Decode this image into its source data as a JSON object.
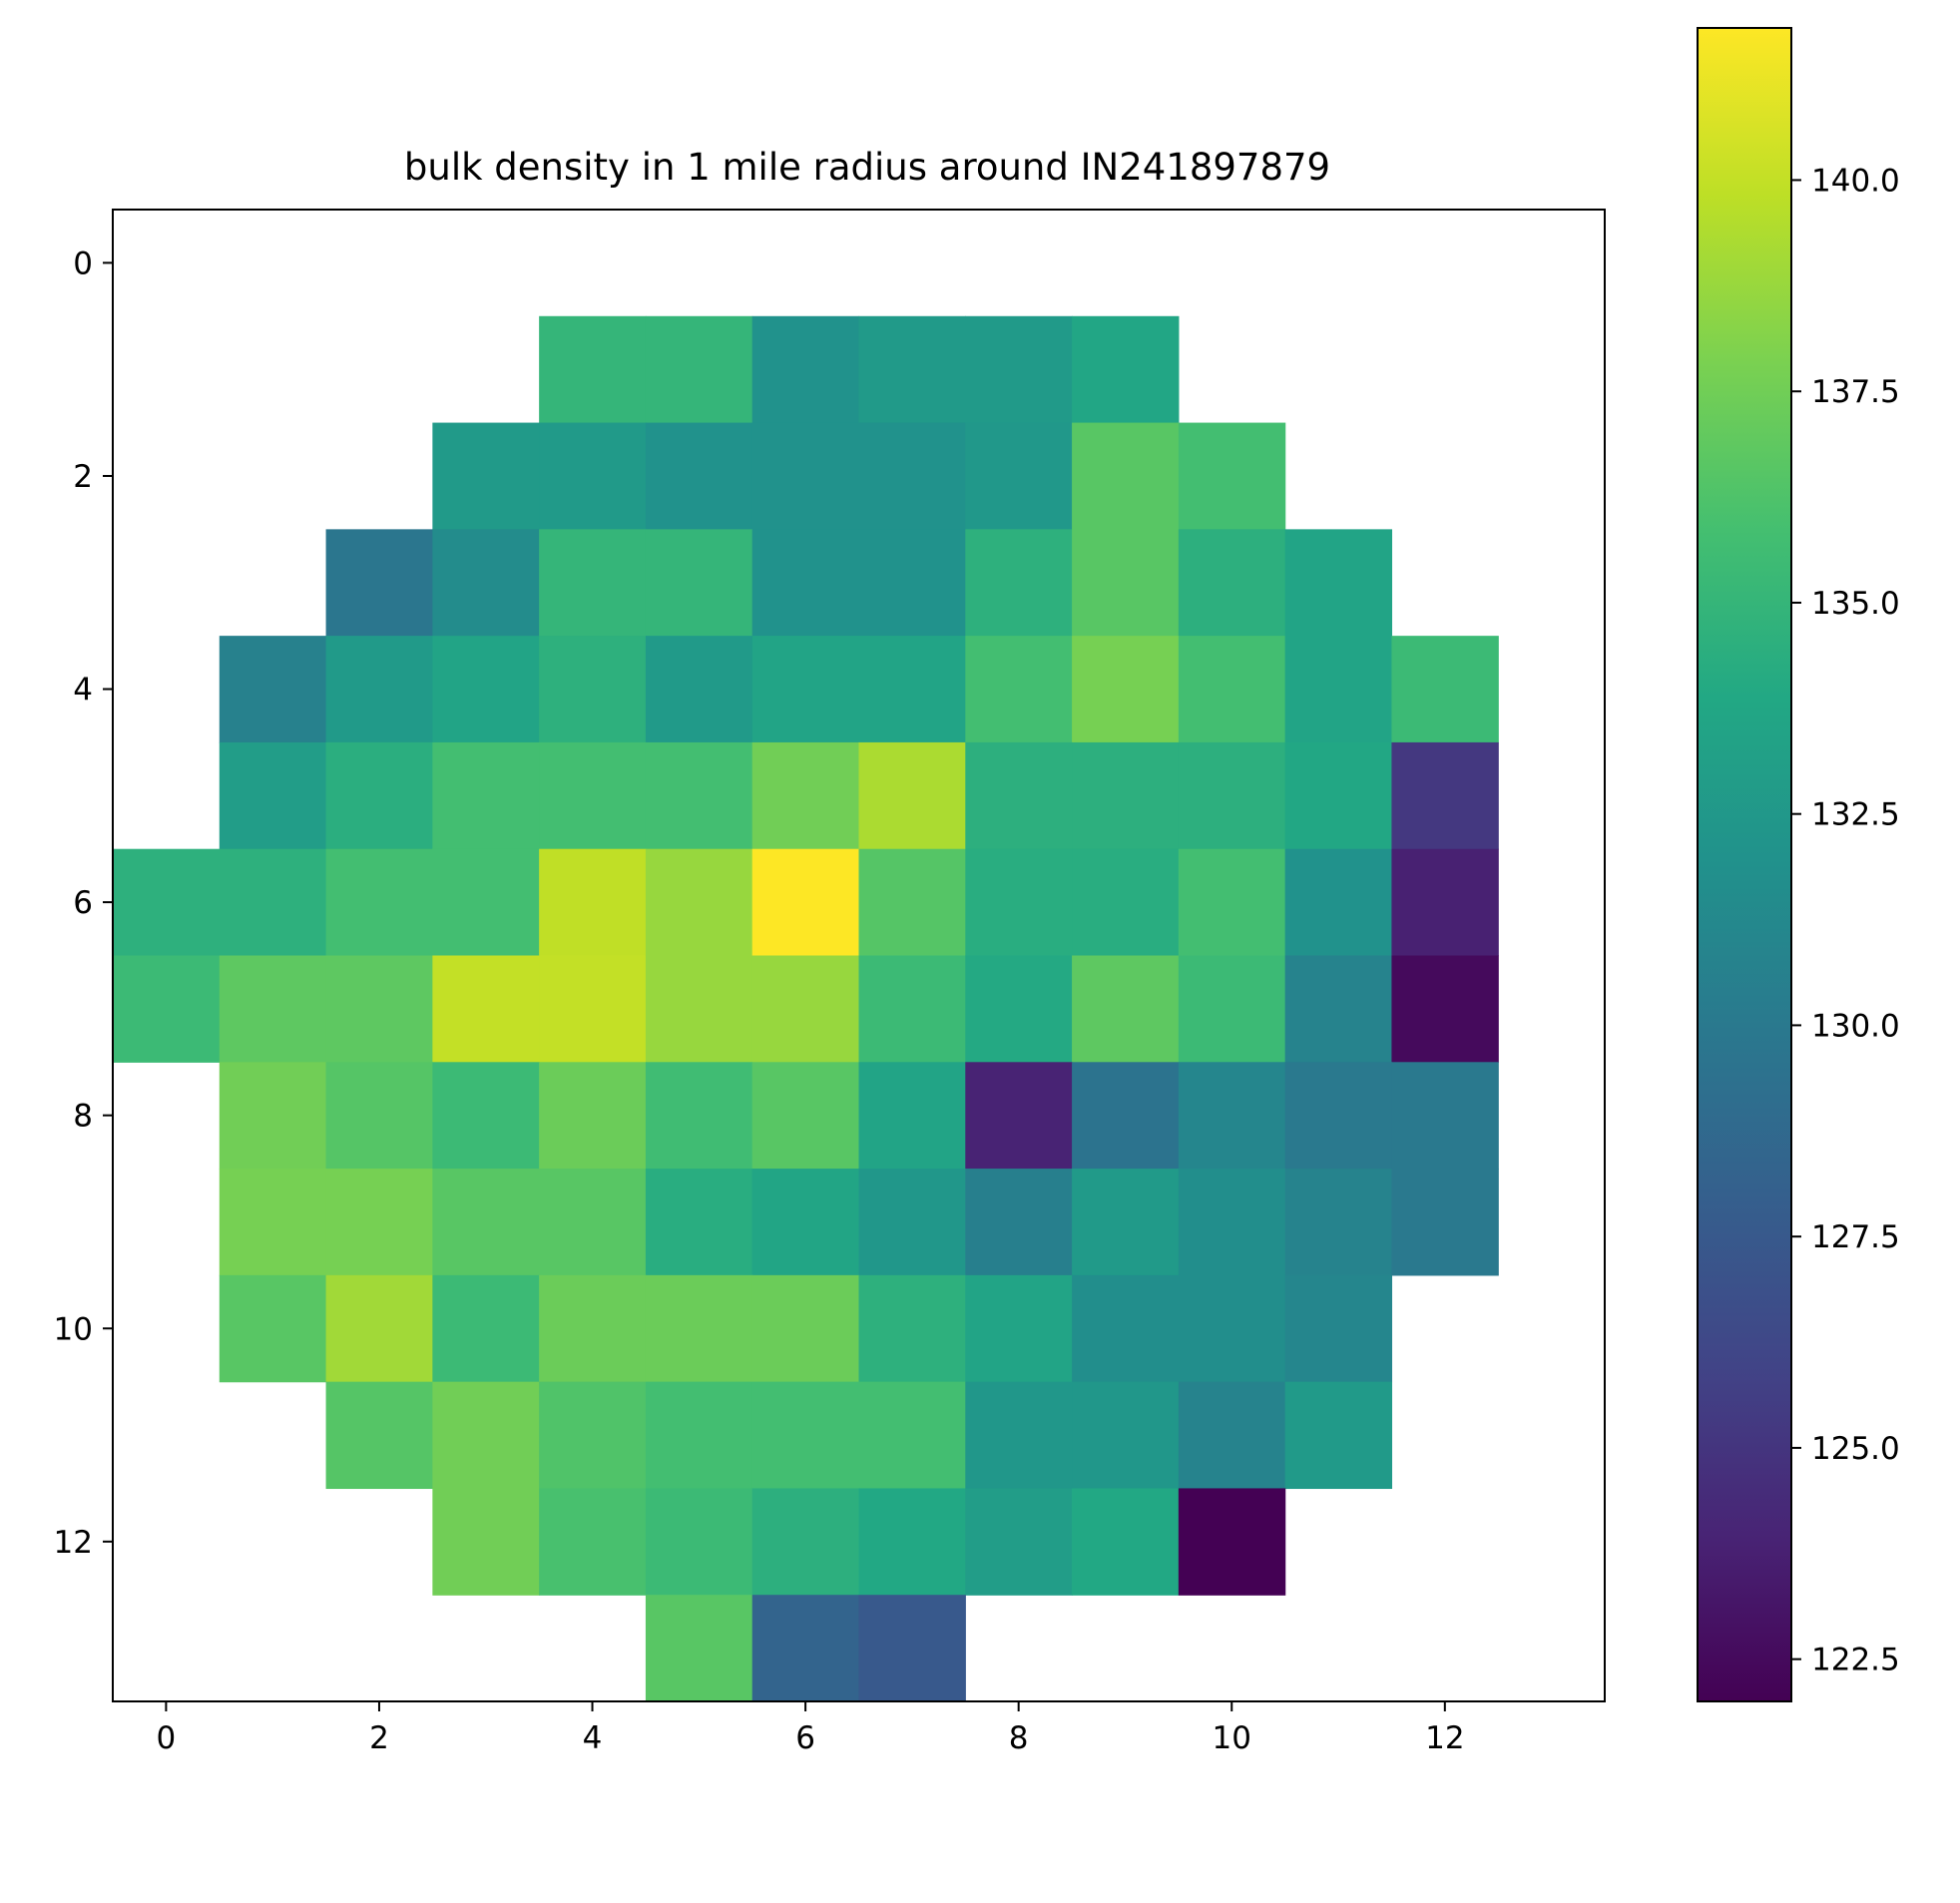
{
  "chart_data": {
    "type": "heatmap",
    "title": "bulk density in 1 mile radius around IN241897879",
    "xlabel": "",
    "ylabel": "",
    "colormap": "viridis",
    "x_ticks": [
      "0",
      "2",
      "4",
      "6",
      "8",
      "10",
      "12"
    ],
    "y_ticks": [
      "0",
      "2",
      "4",
      "6",
      "8",
      "10",
      "12"
    ],
    "x_range": [
      -0.5,
      13.5
    ],
    "y_range": [
      -0.5,
      13.5
    ],
    "y_inverted": true,
    "grid": false,
    "colorbar": {
      "vmin": 122.0,
      "vmax": 141.8,
      "ticks": [
        "122.5",
        "125.0",
        "127.5",
        "130.0",
        "132.5",
        "135.0",
        "137.5",
        "140.0"
      ]
    },
    "rows": 14,
    "cols": 14,
    "values": [
      [
        null,
        null,
        null,
        null,
        null,
        null,
        null,
        null,
        null,
        null,
        null,
        null,
        null,
        null
      ],
      [
        null,
        null,
        null,
        null,
        135.0,
        135.0,
        132.0,
        132.7,
        132.7,
        133.7,
        null,
        null,
        null,
        null
      ],
      [
        null,
        null,
        null,
        132.7,
        132.7,
        132.0,
        132.0,
        132.0,
        132.5,
        136.6,
        135.8,
        null,
        null,
        null
      ],
      [
        null,
        null,
        129.8,
        131.5,
        135.0,
        135.0,
        132.0,
        132.0,
        134.6,
        136.6,
        134.5,
        133.5,
        null,
        null
      ],
      [
        null,
        130.6,
        132.7,
        133.5,
        134.6,
        132.7,
        133.5,
        133.5,
        135.8,
        137.7,
        135.8,
        133.5,
        135.4,
        null
      ],
      [
        null,
        132.9,
        134.4,
        135.8,
        135.8,
        135.8,
        137.5,
        139.3,
        134.5,
        134.5,
        134.5,
        133.8,
        125.2,
        null
      ],
      [
        134.6,
        134.6,
        135.8,
        135.8,
        139.9,
        138.7,
        141.8,
        136.5,
        134.3,
        134.3,
        135.8,
        132.0,
        123.8,
        null
      ],
      [
        135.4,
        136.8,
        136.8,
        140.0,
        140.0,
        138.7,
        138.7,
        135.4,
        134.0,
        136.8,
        135.4,
        130.8,
        122.5,
        null
      ],
      [
        null,
        137.5,
        136.5,
        135.4,
        137.3,
        135.6,
        136.6,
        133.5,
        123.9,
        129.5,
        131.0,
        130.0,
        130.0,
        null
      ],
      [
        null,
        137.7,
        137.7,
        136.6,
        136.6,
        134.3,
        133.6,
        132.4,
        130.5,
        132.7,
        131.7,
        130.8,
        130.0,
        null
      ],
      [
        null,
        136.6,
        139.0,
        135.4,
        137.3,
        137.3,
        137.3,
        134.6,
        133.5,
        131.7,
        131.7,
        131.0,
        null,
        null
      ],
      [
        null,
        null,
        136.5,
        137.5,
        136.3,
        135.8,
        135.8,
        135.8,
        132.4,
        132.4,
        130.8,
        132.7,
        null,
        null
      ],
      [
        null,
        null,
        null,
        137.5,
        136.0,
        135.4,
        134.5,
        133.9,
        132.9,
        133.9,
        122.0,
        null,
        null,
        null
      ],
      [
        null,
        null,
        null,
        null,
        null,
        136.6,
        128.3,
        127.5,
        null,
        null,
        null,
        null,
        null,
        null
      ]
    ]
  }
}
